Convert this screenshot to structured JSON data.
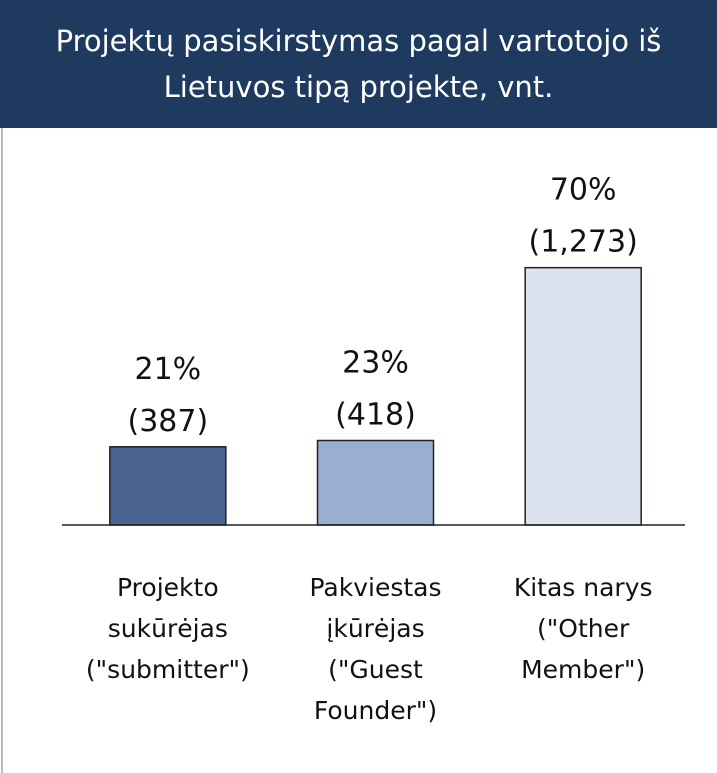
{
  "chart_data": {
    "type": "bar",
    "title": "Projektų pasiskirstymas pagal  vartotojo iš Lietuvos tipą projekte, vnt.",
    "categories": [
      [
        "Projekto",
        "sukūrėjas",
        "(\"submitter\")"
      ],
      [
        "Pakviestas",
        "įkūrėjas",
        "(\"Guest",
        "Founder\")"
      ],
      [
        "Kitas narys",
        "(\"Other",
        "Member\")"
      ]
    ],
    "values": [
      387,
      418,
      1273
    ],
    "value_labels": [
      "(387)",
      "(418)",
      "(1,273)"
    ],
    "shares": [
      21,
      23,
      70
    ],
    "share_labels": [
      "21%",
      "23%",
      "70%"
    ],
    "colors": [
      "#4a6491",
      "#9aafcf",
      "#dde3ee"
    ],
    "ylim": [
      0,
      1400
    ]
  }
}
